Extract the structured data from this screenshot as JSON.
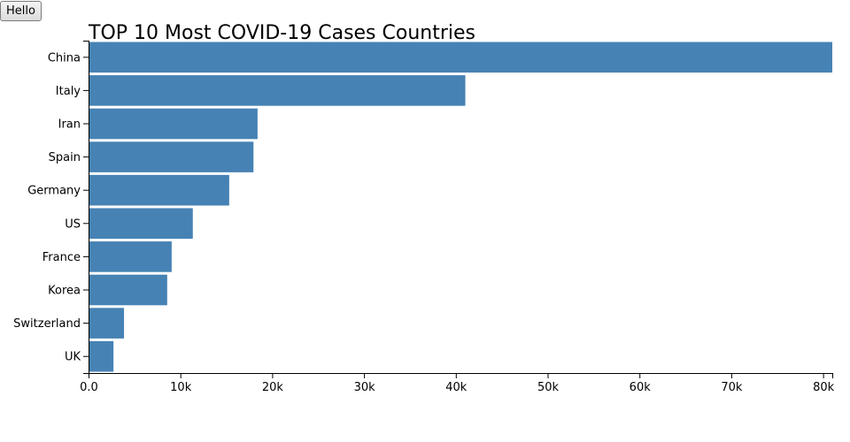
{
  "button": {
    "label": "Hello"
  },
  "colors": {
    "bar": "#4682b4",
    "axis": "#000000"
  },
  "chart_data": {
    "type": "bar",
    "orientation": "horizontal",
    "title": "TOP 10 Most COVID-19 Cases Countries",
    "categories": [
      "China",
      "Italy",
      "Iran",
      "Spain",
      "Germany",
      "US",
      "France",
      "Korea",
      "Switzerland",
      "UK"
    ],
    "values": [
      81000,
      41035,
      18407,
      17963,
      15320,
      11355,
      9052,
      8565,
      3863,
      2716
    ],
    "xlabel": "",
    "ylabel": "",
    "xlim": [
      0,
      81000
    ],
    "x_ticks": [
      0,
      10000,
      20000,
      30000,
      40000,
      50000,
      60000,
      70000,
      80000
    ],
    "x_tick_labels": [
      "0.0",
      "10k",
      "20k",
      "30k",
      "40k",
      "50k",
      "60k",
      "70k",
      "80k"
    ],
    "grid": false,
    "legend": "none"
  }
}
